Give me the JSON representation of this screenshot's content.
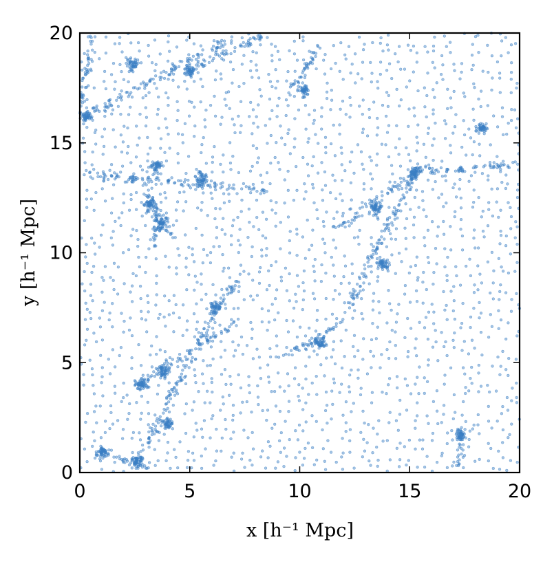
{
  "chart_data": {
    "type": "scatter",
    "xlabel": "x [h⁻¹ Mpc]",
    "ylabel": "y [h⁻¹ Mpc]",
    "xlim": [
      0,
      20
    ],
    "ylim": [
      0,
      20
    ],
    "xticks": [
      "0",
      "5",
      "10",
      "15",
      "20"
    ],
    "yticks": [
      "0",
      "5",
      "10",
      "15",
      "20"
    ],
    "grid": false,
    "legend": "none",
    "marker_color": "#3a7fc4",
    "marker_opacity": 0.45,
    "description": "Cosmic-web particle distribution: dense clumps connected by filaments with a quasi-uniform background of particles.",
    "clusters": [
      {
        "x": 0.3,
        "y": 16.2
      },
      {
        "x": 3.5,
        "y": 13.9
      },
      {
        "x": 3.2,
        "y": 12.2
      },
      {
        "x": 3.7,
        "y": 11.3
      },
      {
        "x": 6.2,
        "y": 7.5
      },
      {
        "x": 10.9,
        "y": 5.9
      },
      {
        "x": 4.0,
        "y": 2.2
      },
      {
        "x": 2.6,
        "y": 0.5
      },
      {
        "x": 15.2,
        "y": 13.6
      },
      {
        "x": 13.5,
        "y": 12.0
      },
      {
        "x": 5.5,
        "y": 13.4
      },
      {
        "x": 5.0,
        "y": 18.3
      },
      {
        "x": 2.4,
        "y": 18.6
      },
      {
        "x": 10.2,
        "y": 17.4
      },
      {
        "x": 2.8,
        "y": 4.0
      },
      {
        "x": 3.8,
        "y": 4.6
      },
      {
        "x": 18.3,
        "y": 15.7
      },
      {
        "x": 17.3,
        "y": 1.7
      },
      {
        "x": 1.0,
        "y": 0.9
      },
      {
        "x": 13.8,
        "y": 9.5
      }
    ],
    "filaments": [
      {
        "from": [
          0.0,
          13.6
        ],
        "to": [
          8.5,
          12.8
        ]
      },
      {
        "from": [
          3.0,
          12.8
        ],
        "to": [
          4.2,
          10.8
        ]
      },
      {
        "from": [
          0.3,
          16.2
        ],
        "to": [
          7.0,
          19.8
        ]
      },
      {
        "from": [
          1.0,
          0.9
        ],
        "to": [
          3.2,
          0.3
        ]
      },
      {
        "from": [
          2.6,
          0.5
        ],
        "to": [
          6.2,
          7.5
        ]
      },
      {
        "from": [
          6.2,
          7.5
        ],
        "to": [
          7.3,
          8.9
        ]
      },
      {
        "from": [
          2.5,
          4.0
        ],
        "to": [
          7.0,
          6.8
        ]
      },
      {
        "from": [
          9.0,
          5.2
        ],
        "to": [
          11.7,
          6.6
        ]
      },
      {
        "from": [
          11.5,
          11.0
        ],
        "to": [
          15.3,
          13.7
        ]
      },
      {
        "from": [
          15.3,
          13.7
        ],
        "to": [
          20.0,
          14.0
        ]
      },
      {
        "from": [
          11.7,
          6.6
        ],
        "to": [
          15.3,
          13.7
        ]
      },
      {
        "from": [
          3.3,
          10.0
        ],
        "to": [
          3.6,
          12.0
        ]
      },
      {
        "from": [
          5.0,
          18.3
        ],
        "to": [
          8.3,
          19.9
        ]
      },
      {
        "from": [
          0.0,
          16.2
        ],
        "to": [
          0.5,
          19.8
        ]
      },
      {
        "from": [
          17.2,
          0.3
        ],
        "to": [
          17.4,
          2.0
        ]
      },
      {
        "from": [
          9.5,
          17.2
        ],
        "to": [
          11.0,
          19.5
        ]
      }
    ]
  }
}
